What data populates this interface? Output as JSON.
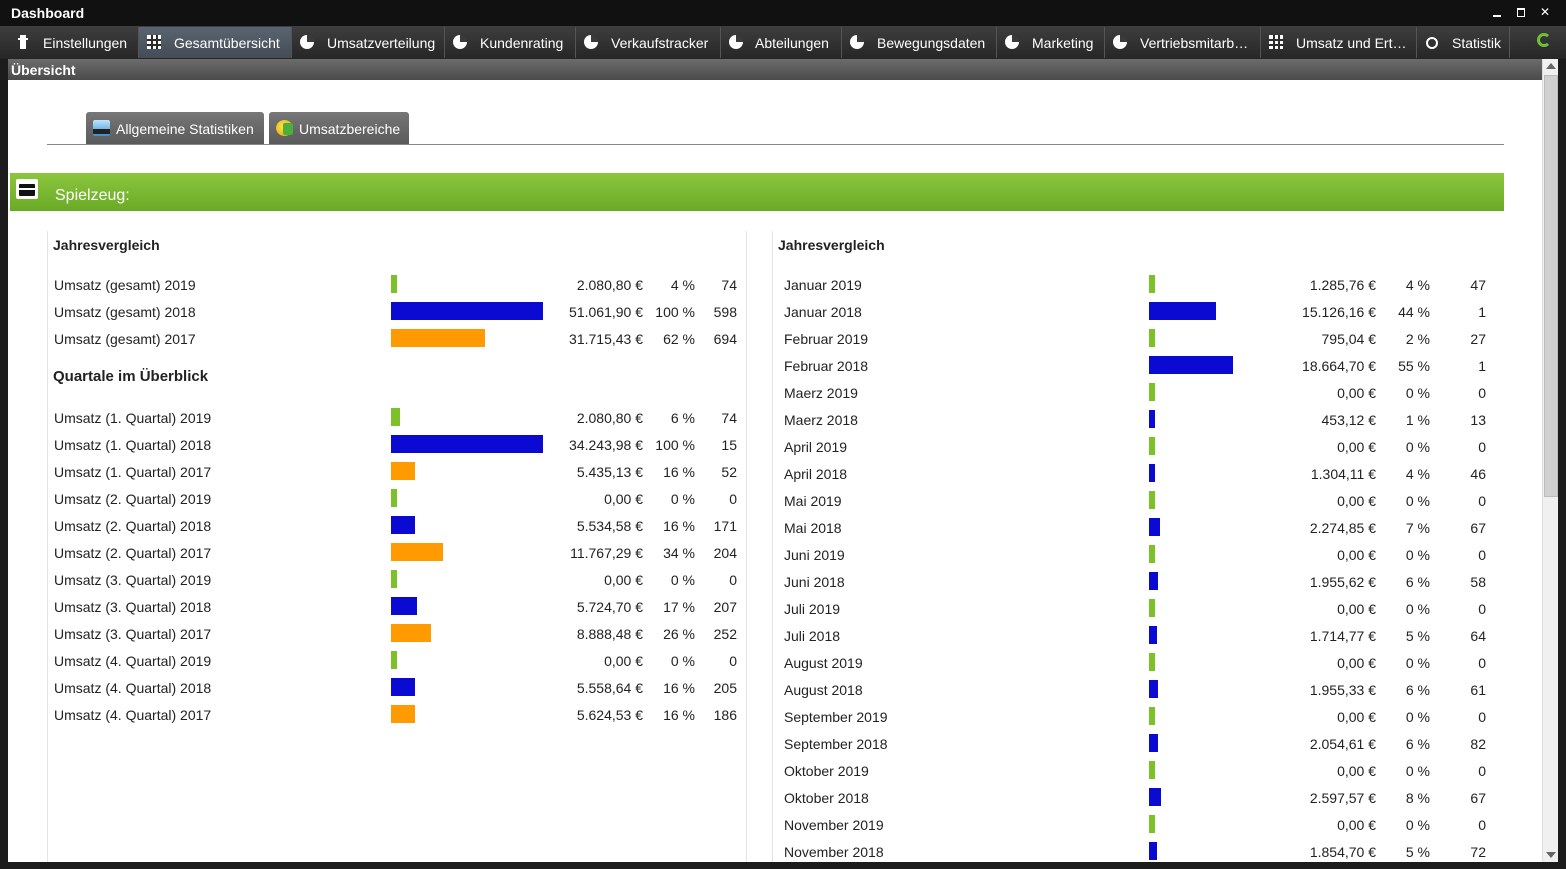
{
  "window": {
    "title": "Dashboard"
  },
  "tabs": [
    {
      "label": "Einstellungen",
      "icon": "clipboard-icon"
    },
    {
      "label": "Gesamtübersicht",
      "icon": "grid-icon",
      "active": true
    },
    {
      "label": "Umsatzverteilung",
      "icon": "pie-chart-icon"
    },
    {
      "label": "Kundenrating",
      "icon": "pie-chart-icon"
    },
    {
      "label": "Verkaufstracker",
      "icon": "pie-chart-icon"
    },
    {
      "label": "Abteilungen",
      "icon": "pie-chart-icon"
    },
    {
      "label": "Bewegungsdaten",
      "icon": "pie-chart-icon"
    },
    {
      "label": "Marketing",
      "icon": "pie-chart-icon"
    },
    {
      "label": "Vertriebsmitarb…",
      "icon": "pie-chart-icon"
    },
    {
      "label": "Umsatz und Ert…",
      "icon": "grid-icon"
    },
    {
      "label": "Statistik",
      "icon": "medal-icon"
    }
  ],
  "section_title": "Übersicht",
  "subtabs": [
    {
      "label": "Allgemeine Statistiken"
    },
    {
      "label": "Umsatzbereiche"
    }
  ],
  "category_title": "Spielzeug:",
  "colors": {
    "y2019": "#7dc12a",
    "y2018": "#0a0ad2",
    "y2017": "#ff9a00",
    "green_bar": "#7ab833"
  },
  "left_panel": {
    "title": "Jahresvergleich",
    "rows": [
      {
        "label": "Umsatz (gesamt) 2019",
        "value": "2.080,80 €",
        "percent": "4 %",
        "count": "74",
        "year": "2019",
        "fraction": 0.04
      },
      {
        "label": "Umsatz (gesamt) 2018",
        "value": "51.061,90 €",
        "percent": "100 %",
        "count": "598",
        "year": "2018",
        "fraction": 1.0
      },
      {
        "label": "Umsatz (gesamt) 2017",
        "value": "31.715,43 €",
        "percent": "62 %",
        "count": "694",
        "year": "2017",
        "fraction": 0.62
      }
    ],
    "quarter_title": "Quartale im Überblick",
    "quarter_rows": [
      {
        "label": "Umsatz (1. Quartal) 2019",
        "value": "2.080,80 €",
        "percent": "6 %",
        "count": "74",
        "year": "2019",
        "fraction": 0.06
      },
      {
        "label": "Umsatz (1. Quartal) 2018",
        "value": "34.243,98 €",
        "percent": "100 %",
        "count": "15",
        "year": "2018",
        "fraction": 1.0
      },
      {
        "label": "Umsatz (1. Quartal) 2017",
        "value": "5.435,13 €",
        "percent": "16 %",
        "count": "52",
        "year": "2017",
        "fraction": 0.16
      },
      {
        "label": "Umsatz (2. Quartal) 2019",
        "value": "0,00 €",
        "percent": "0 %",
        "count": "0",
        "year": "2019",
        "fraction": 0
      },
      {
        "label": "Umsatz (2. Quartal) 2018",
        "value": "5.534,58 €",
        "percent": "16 %",
        "count": "171",
        "year": "2018",
        "fraction": 0.16
      },
      {
        "label": "Umsatz (2. Quartal) 2017",
        "value": "11.767,29 €",
        "percent": "34 %",
        "count": "204",
        "year": "2017",
        "fraction": 0.34
      },
      {
        "label": "Umsatz (3. Quartal) 2019",
        "value": "0,00 €",
        "percent": "0 %",
        "count": "0",
        "year": "2019",
        "fraction": 0
      },
      {
        "label": "Umsatz (3. Quartal) 2018",
        "value": "5.724,70 €",
        "percent": "17 %",
        "count": "207",
        "year": "2018",
        "fraction": 0.17
      },
      {
        "label": "Umsatz (3. Quartal) 2017",
        "value": "8.888,48 €",
        "percent": "26 %",
        "count": "252",
        "year": "2017",
        "fraction": 0.26
      },
      {
        "label": "Umsatz (4. Quartal) 2019",
        "value": "0,00 €",
        "percent": "0 %",
        "count": "0",
        "year": "2019",
        "fraction": 0
      },
      {
        "label": "Umsatz (4. Quartal) 2018",
        "value": "5.558,64 €",
        "percent": "16 %",
        "count": "205",
        "year": "2018",
        "fraction": 0.16
      },
      {
        "label": "Umsatz (4. Quartal) 2017",
        "value": "5.624,53 €",
        "percent": "16 %",
        "count": "186",
        "year": "2017",
        "fraction": 0.16
      }
    ]
  },
  "right_panel": {
    "title": "Jahresvergleich",
    "rows": [
      {
        "label": "Januar 2019",
        "value": "1.285,76 €",
        "percent": "4 %",
        "count": "47",
        "year": "2019",
        "fraction": 0.04
      },
      {
        "label": "Januar 2018",
        "value": "15.126,16 €",
        "percent": "44 %",
        "count": "1",
        "year": "2018",
        "fraction": 0.44
      },
      {
        "label": "Februar 2019",
        "value": "795,04 €",
        "percent": "2 %",
        "count": "27",
        "year": "2019",
        "fraction": 0.02
      },
      {
        "label": "Februar 2018",
        "value": "18.664,70 €",
        "percent": "55 %",
        "count": "1",
        "year": "2018",
        "fraction": 0.55
      },
      {
        "label": "Maerz 2019",
        "value": "0,00 €",
        "percent": "0 %",
        "count": "0",
        "year": "2019",
        "fraction": 0
      },
      {
        "label": "Maerz 2018",
        "value": "453,12 €",
        "percent": "1 %",
        "count": "13",
        "year": "2018",
        "fraction": 0.01
      },
      {
        "label": "April 2019",
        "value": "0,00 €",
        "percent": "0 %",
        "count": "0",
        "year": "2019",
        "fraction": 0
      },
      {
        "label": "April 2018",
        "value": "1.304,11 €",
        "percent": "4 %",
        "count": "46",
        "year": "2018",
        "fraction": 0.04
      },
      {
        "label": "Mai 2019",
        "value": "0,00 €",
        "percent": "0 %",
        "count": "0",
        "year": "2019",
        "fraction": 0
      },
      {
        "label": "Mai 2018",
        "value": "2.274,85 €",
        "percent": "7 %",
        "count": "67",
        "year": "2018",
        "fraction": 0.07
      },
      {
        "label": "Juni 2019",
        "value": "0,00 €",
        "percent": "0 %",
        "count": "0",
        "year": "2019",
        "fraction": 0
      },
      {
        "label": "Juni 2018",
        "value": "1.955,62 €",
        "percent": "6 %",
        "count": "58",
        "year": "2018",
        "fraction": 0.06
      },
      {
        "label": "Juli 2019",
        "value": "0,00 €",
        "percent": "0 %",
        "count": "0",
        "year": "2019",
        "fraction": 0
      },
      {
        "label": "Juli 2018",
        "value": "1.714,77 €",
        "percent": "5 %",
        "count": "64",
        "year": "2018",
        "fraction": 0.05
      },
      {
        "label": "August 2019",
        "value": "0,00 €",
        "percent": "0 %",
        "count": "0",
        "year": "2019",
        "fraction": 0
      },
      {
        "label": "August 2018",
        "value": "1.955,33 €",
        "percent": "6 %",
        "count": "61",
        "year": "2018",
        "fraction": 0.06
      },
      {
        "label": "September 2019",
        "value": "0,00 €",
        "percent": "0 %",
        "count": "0",
        "year": "2019",
        "fraction": 0
      },
      {
        "label": "September 2018",
        "value": "2.054,61 €",
        "percent": "6 %",
        "count": "82",
        "year": "2018",
        "fraction": 0.06
      },
      {
        "label": "Oktober 2019",
        "value": "0,00 €",
        "percent": "0 %",
        "count": "0",
        "year": "2019",
        "fraction": 0
      },
      {
        "label": "Oktober 2018",
        "value": "2.597,57 €",
        "percent": "8 %",
        "count": "67",
        "year": "2018",
        "fraction": 0.08
      },
      {
        "label": "November 2019",
        "value": "0,00 €",
        "percent": "0 %",
        "count": "0",
        "year": "2019",
        "fraction": 0
      },
      {
        "label": "November 2018",
        "value": "1.854,70 €",
        "percent": "5 %",
        "count": "72",
        "year": "2018",
        "fraction": 0.05
      }
    ]
  }
}
